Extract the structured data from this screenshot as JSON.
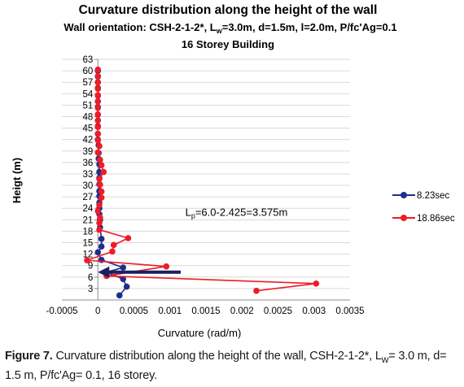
{
  "chart_data": {
    "type": "line",
    "title": "Curvature distribution along the height of the wall",
    "subtitle_parts": {
      "prefix": "Wall orientation: CSH-2-1-2*, L",
      "lw_sub": "w",
      "suffix": "=3.0m, d=1.5m, l=2.0m, P/fc'Ag=0.1"
    },
    "subtitle2": "16 Storey Building",
    "xlabel": "Curvature (rad/m)",
    "ylabel": "Heigt (m)",
    "xlim": [
      -0.0005,
      0.0035
    ],
    "ylim": [
      0,
      63
    ],
    "x_ticks": [
      "-0.0005",
      "0",
      "0.0005",
      "0.001",
      "0.0015",
      "0.002",
      "0.0025",
      "0.003",
      "0.0035"
    ],
    "y_ticks": [
      "3",
      "6",
      "9",
      "12",
      "15",
      "18",
      "21",
      "24",
      "27",
      "30",
      "33",
      "36",
      "39",
      "42",
      "45",
      "48",
      "51",
      "54",
      "57",
      "60",
      "63"
    ],
    "y_tick_values": [
      3,
      6,
      9,
      12,
      15,
      18,
      21,
      24,
      27,
      30,
      33,
      36,
      39,
      42,
      45,
      48,
      51,
      54,
      57,
      60,
      63
    ],
    "annotation": {
      "prefix": "L",
      "sub": "p",
      "suffix": "=6.0-2.425=3.575m",
      "x": 0.0011,
      "y": 22
    },
    "arrow": {
      "x_from": 0.00115,
      "x_to": 0.0,
      "y": 7.3
    },
    "legend_position": "right",
    "series": [
      {
        "name": "8.23sec",
        "color": "#1f2d8c",
        "points": [
          [
            0.0003,
            1.2
          ],
          [
            0.0004,
            3.5
          ],
          [
            0.00035,
            5.5
          ],
          [
            0.00012,
            7.3
          ],
          [
            0.00035,
            8.5
          ],
          [
            5e-05,
            10.5
          ],
          [
            0.0,
            12.5
          ],
          [
            5e-05,
            14
          ],
          [
            5e-05,
            16
          ],
          [
            3e-05,
            19
          ],
          [
            3e-05,
            21
          ],
          [
            2e-05,
            22.5
          ],
          [
            2e-05,
            24
          ],
          [
            2e-05,
            25.5
          ],
          [
            2e-05,
            27.2
          ],
          [
            2e-05,
            28.5
          ],
          [
            2e-05,
            30.3
          ],
          [
            2e-05,
            32
          ],
          [
            2e-05,
            33.5
          ],
          [
            2e-05,
            35.5
          ],
          [
            1e-05,
            37
          ],
          [
            1e-05,
            38.5
          ],
          [
            1e-05,
            40.5
          ],
          [
            0.0,
            42
          ],
          [
            0.0,
            43.5
          ],
          [
            0.0,
            45.5
          ],
          [
            0.0,
            47
          ],
          [
            0.0,
            48.5
          ],
          [
            0.0,
            50.5
          ],
          [
            0.0,
            52
          ],
          [
            0.0,
            53.5
          ],
          [
            0.0,
            55.5
          ],
          [
            0.0,
            57
          ],
          [
            0.0,
            58.5
          ],
          [
            0.0,
            60
          ]
        ]
      },
      {
        "name": "18.86sec",
        "color": "#ee1c25",
        "points": [
          [
            0.0022,
            2.4
          ],
          [
            0.00303,
            4.3
          ],
          [
            0.00012,
            6.3
          ],
          [
            0.00095,
            8.8
          ],
          [
            -0.00015,
            10.4
          ],
          [
            0.0002,
            12.7
          ],
          [
            0.00022,
            14.4
          ],
          [
            0.00042,
            16.2
          ],
          [
            2e-05,
            18.4
          ],
          [
            2e-05,
            20.2
          ],
          [
            3e-05,
            21.6
          ],
          [
            0.0,
            23.3
          ],
          [
            2e-05,
            24.9
          ],
          [
            5e-05,
            26.8
          ],
          [
            5e-05,
            28.4
          ],
          [
            3e-05,
            30.2
          ],
          [
            2e-05,
            31.7
          ],
          [
            8e-05,
            33.5
          ],
          [
            5e-05,
            35.3
          ],
          [
            3e-05,
            36.7
          ],
          [
            0.0,
            38.6
          ],
          [
            2e-05,
            40.3
          ],
          [
            0.0,
            41.8
          ],
          [
            0.0,
            43.5
          ],
          [
            0.0,
            45.3
          ],
          [
            0.0,
            47
          ],
          [
            0.0,
            48.6
          ],
          [
            0.0,
            50.3
          ],
          [
            0.0,
            52
          ],
          [
            0.0,
            53.6
          ],
          [
            0.0,
            55.3
          ],
          [
            0.0,
            57
          ],
          [
            0.0,
            58.6
          ],
          [
            0.0,
            60.3
          ]
        ]
      }
    ]
  },
  "caption": {
    "lead": "Figure 7.",
    "text_a": " Curvature distribution along the height of the wall, CSH-2-1-2*, L",
    "lw_sub": "w",
    "text_b": "= 3.0 m, d=",
    "line2": "1.5 m, P/fc'Ag= 0.1, 16 storey."
  }
}
